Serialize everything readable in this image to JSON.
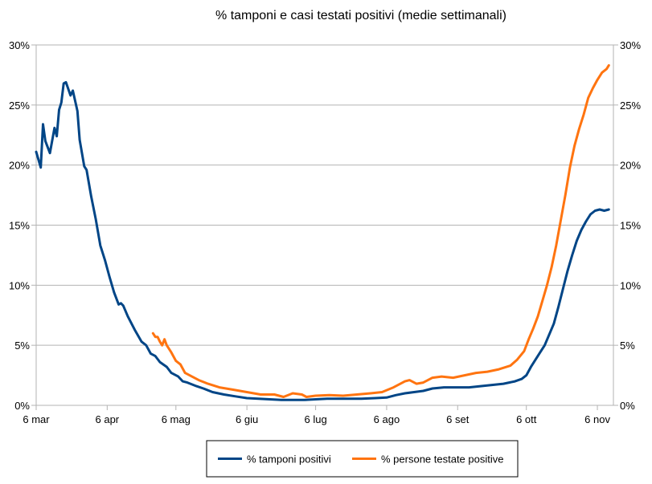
{
  "chart_data": {
    "type": "line",
    "title": "% tamponi e casi testati positivi (medie settimanali)",
    "xlabel": "",
    "ylabel": "",
    "x_ticks": [
      "6 mar",
      "6 apr",
      "6 mag",
      "6 giu",
      "6 lug",
      "6 ago",
      "6 set",
      "6 ott",
      "6 nov"
    ],
    "y_ticks": [
      "0%",
      "5%",
      "10%",
      "15%",
      "20%",
      "25%",
      "30%"
    ],
    "y_ticks_right": [
      "0%",
      "5%",
      "10%",
      "15%",
      "20%",
      "25%",
      "30%"
    ],
    "ylim": [
      0,
      30
    ],
    "grid": "horizontal",
    "legend_position": "bottom",
    "series": [
      {
        "name": "% tamponi positivi",
        "color": "#004586",
        "points": [
          [
            "2020-03-06",
            21.1
          ],
          [
            "2020-03-08",
            19.8
          ],
          [
            "2020-03-09",
            23.4
          ],
          [
            "2020-03-10",
            22.0
          ],
          [
            "2020-03-12",
            21.0
          ],
          [
            "2020-03-14",
            23.1
          ],
          [
            "2020-03-15",
            22.4
          ],
          [
            "2020-03-16",
            24.6
          ],
          [
            "2020-03-17",
            25.2
          ],
          [
            "2020-03-18",
            26.8
          ],
          [
            "2020-03-19",
            26.9
          ],
          [
            "2020-03-21",
            25.8
          ],
          [
            "2020-03-22",
            26.2
          ],
          [
            "2020-03-24",
            24.5
          ],
          [
            "2020-03-25",
            22.1
          ],
          [
            "2020-03-27",
            19.9
          ],
          [
            "2020-03-28",
            19.6
          ],
          [
            "2020-03-30",
            17.4
          ],
          [
            "2020-04-01",
            15.5
          ],
          [
            "2020-04-03",
            13.3
          ],
          [
            "2020-04-05",
            12.1
          ],
          [
            "2020-04-07",
            10.7
          ],
          [
            "2020-04-09",
            9.4
          ],
          [
            "2020-04-11",
            8.4
          ],
          [
            "2020-04-12",
            8.5
          ],
          [
            "2020-04-13",
            8.3
          ],
          [
            "2020-04-15",
            7.4
          ],
          [
            "2020-04-18",
            6.3
          ],
          [
            "2020-04-21",
            5.3
          ],
          [
            "2020-04-23",
            5.0
          ],
          [
            "2020-04-25",
            4.3
          ],
          [
            "2020-04-27",
            4.1
          ],
          [
            "2020-04-29",
            3.6
          ],
          [
            "2020-05-02",
            3.2
          ],
          [
            "2020-05-04",
            2.7
          ],
          [
            "2020-05-07",
            2.4
          ],
          [
            "2020-05-09",
            2.0
          ],
          [
            "2020-05-11",
            1.9
          ],
          [
            "2020-05-15",
            1.6
          ],
          [
            "2020-05-18",
            1.4
          ],
          [
            "2020-05-22",
            1.1
          ],
          [
            "2020-05-27",
            0.9
          ],
          [
            "2020-06-01",
            0.75
          ],
          [
            "2020-06-06",
            0.6
          ],
          [
            "2020-06-11",
            0.55
          ],
          [
            "2020-06-16",
            0.5
          ],
          [
            "2020-06-21",
            0.45
          ],
          [
            "2020-06-26",
            0.45
          ],
          [
            "2020-07-01",
            0.45
          ],
          [
            "2020-07-06",
            0.5
          ],
          [
            "2020-07-11",
            0.55
          ],
          [
            "2020-07-16",
            0.55
          ],
          [
            "2020-07-21",
            0.55
          ],
          [
            "2020-07-26",
            0.55
          ],
          [
            "2020-08-01",
            0.6
          ],
          [
            "2020-08-06",
            0.65
          ],
          [
            "2020-08-10",
            0.85
          ],
          [
            "2020-08-14",
            1.0
          ],
          [
            "2020-08-18",
            1.1
          ],
          [
            "2020-08-22",
            1.2
          ],
          [
            "2020-08-26",
            1.4
          ],
          [
            "2020-08-31",
            1.5
          ],
          [
            "2020-09-06",
            1.5
          ],
          [
            "2020-09-11",
            1.5
          ],
          [
            "2020-09-16",
            1.6
          ],
          [
            "2020-09-21",
            1.7
          ],
          [
            "2020-09-26",
            1.8
          ],
          [
            "2020-10-01",
            2.0
          ],
          [
            "2020-10-04",
            2.2
          ],
          [
            "2020-10-06",
            2.5
          ],
          [
            "2020-10-08",
            3.2
          ],
          [
            "2020-10-10",
            3.8
          ],
          [
            "2020-10-12",
            4.4
          ],
          [
            "2020-10-14",
            5.0
          ],
          [
            "2020-10-16",
            5.9
          ],
          [
            "2020-10-18",
            6.8
          ],
          [
            "2020-10-20",
            8.2
          ],
          [
            "2020-10-22",
            9.7
          ],
          [
            "2020-10-24",
            11.2
          ],
          [
            "2020-10-26",
            12.5
          ],
          [
            "2020-10-28",
            13.7
          ],
          [
            "2020-10-30",
            14.6
          ],
          [
            "2020-11-01",
            15.3
          ],
          [
            "2020-11-03",
            15.9
          ],
          [
            "2020-11-05",
            16.2
          ],
          [
            "2020-11-07",
            16.3
          ],
          [
            "2020-11-09",
            16.2
          ],
          [
            "2020-11-11",
            16.3
          ]
        ]
      },
      {
        "name": "% persone testate positive",
        "color": "#ff7410",
        "points": [
          [
            "2020-04-26",
            6.0
          ],
          [
            "2020-04-27",
            5.7
          ],
          [
            "2020-04-28",
            5.7
          ],
          [
            "2020-04-29",
            5.3
          ],
          [
            "2020-04-30",
            5.0
          ],
          [
            "2020-05-01",
            5.5
          ],
          [
            "2020-05-02",
            5.0
          ],
          [
            "2020-05-04",
            4.4
          ],
          [
            "2020-05-06",
            3.7
          ],
          [
            "2020-05-08",
            3.4
          ],
          [
            "2020-05-10",
            2.7
          ],
          [
            "2020-05-13",
            2.4
          ],
          [
            "2020-05-16",
            2.1
          ],
          [
            "2020-05-20",
            1.8
          ],
          [
            "2020-05-25",
            1.5
          ],
          [
            "2020-05-31",
            1.3
          ],
          [
            "2020-06-06",
            1.1
          ],
          [
            "2020-06-12",
            0.9
          ],
          [
            "2020-06-18",
            0.9
          ],
          [
            "2020-06-22",
            0.7
          ],
          [
            "2020-06-26",
            1.0
          ],
          [
            "2020-06-30",
            0.9
          ],
          [
            "2020-07-02",
            0.7
          ],
          [
            "2020-07-06",
            0.8
          ],
          [
            "2020-07-12",
            0.85
          ],
          [
            "2020-07-18",
            0.8
          ],
          [
            "2020-07-24",
            0.9
          ],
          [
            "2020-07-30",
            1.0
          ],
          [
            "2020-08-04",
            1.1
          ],
          [
            "2020-08-09",
            1.5
          ],
          [
            "2020-08-14",
            2.0
          ],
          [
            "2020-08-16",
            2.1
          ],
          [
            "2020-08-19",
            1.8
          ],
          [
            "2020-08-22",
            1.9
          ],
          [
            "2020-08-26",
            2.3
          ],
          [
            "2020-08-30",
            2.4
          ],
          [
            "2020-09-04",
            2.3
          ],
          [
            "2020-09-09",
            2.5
          ],
          [
            "2020-09-14",
            2.7
          ],
          [
            "2020-09-19",
            2.8
          ],
          [
            "2020-09-24",
            3.0
          ],
          [
            "2020-09-29",
            3.3
          ],
          [
            "2020-10-02",
            3.8
          ],
          [
            "2020-10-05",
            4.5
          ],
          [
            "2020-10-07",
            5.5
          ],
          [
            "2020-10-09",
            6.4
          ],
          [
            "2020-10-11",
            7.4
          ],
          [
            "2020-10-13",
            8.7
          ],
          [
            "2020-10-15",
            10.0
          ],
          [
            "2020-10-17",
            11.5
          ],
          [
            "2020-10-19",
            13.3
          ],
          [
            "2020-10-21",
            15.4
          ],
          [
            "2020-10-23",
            17.5
          ],
          [
            "2020-10-25",
            19.8
          ],
          [
            "2020-10-27",
            21.6
          ],
          [
            "2020-10-29",
            23.0
          ],
          [
            "2020-10-31",
            24.2
          ],
          [
            "2020-11-02",
            25.6
          ],
          [
            "2020-11-04",
            26.4
          ],
          [
            "2020-11-06",
            27.1
          ],
          [
            "2020-11-08",
            27.7
          ],
          [
            "2020-11-10",
            28.0
          ],
          [
            "2020-11-11",
            28.3
          ]
        ]
      }
    ]
  }
}
